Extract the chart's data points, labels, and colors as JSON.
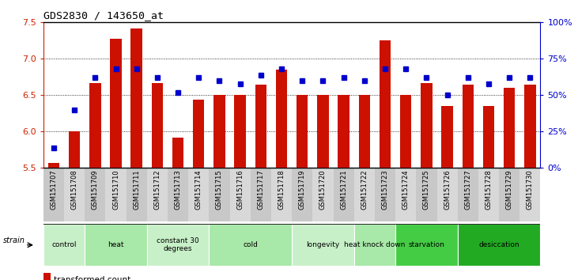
{
  "title": "GDS2830 / 143650_at",
  "samples": [
    "GSM151707",
    "GSM151708",
    "GSM151709",
    "GSM151710",
    "GSM151711",
    "GSM151712",
    "GSM151713",
    "GSM151714",
    "GSM151715",
    "GSM151716",
    "GSM151717",
    "GSM151718",
    "GSM151719",
    "GSM151720",
    "GSM151721",
    "GSM151722",
    "GSM151723",
    "GSM151724",
    "GSM151725",
    "GSM151726",
    "GSM151727",
    "GSM151728",
    "GSM151729",
    "GSM151730"
  ],
  "bar_values": [
    5.57,
    6.0,
    6.67,
    7.28,
    7.42,
    6.67,
    5.92,
    6.44,
    6.5,
    6.5,
    6.65,
    6.85,
    6.5,
    6.5,
    6.5,
    6.5,
    7.25,
    6.5,
    6.67,
    6.35,
    6.65,
    6.35,
    6.6,
    6.65
  ],
  "percentile_values": [
    14,
    40,
    62,
    68,
    68,
    62,
    52,
    62,
    60,
    58,
    64,
    68,
    60,
    60,
    62,
    60,
    68,
    68,
    62,
    50,
    62,
    58,
    62,
    62
  ],
  "groups": [
    {
      "label": "control",
      "start": 0,
      "end": 2,
      "color": "#c8f0c8"
    },
    {
      "label": "heat",
      "start": 2,
      "end": 5,
      "color": "#a8e8a8"
    },
    {
      "label": "constant 30\ndegrees",
      "start": 5,
      "end": 8,
      "color": "#c8f0c8"
    },
    {
      "label": "cold",
      "start": 8,
      "end": 12,
      "color": "#a8e8a8"
    },
    {
      "label": "longevity",
      "start": 12,
      "end": 15,
      "color": "#c8f0c8"
    },
    {
      "label": "heat knock down",
      "start": 15,
      "end": 17,
      "color": "#a8e8a8"
    },
    {
      "label": "starvation",
      "start": 17,
      "end": 20,
      "color": "#44cc44"
    },
    {
      "label": "desiccation",
      "start": 20,
      "end": 24,
      "color": "#22aa22"
    }
  ],
  "ylim_left": [
    5.5,
    7.5
  ],
  "ylim_right": [
    0,
    100
  ],
  "bar_color": "#cc1100",
  "percentile_color": "#0000cc",
  "background_color": "#ffffff",
  "grid_color": "#000000",
  "tick_color_left": "#cc2200",
  "tick_color_right": "#0000cc",
  "yticks_left": [
    5.5,
    6.0,
    6.5,
    7.0,
    7.5
  ],
  "yticks_right": [
    0,
    25,
    50,
    75,
    100
  ],
  "ytick_labels_right": [
    "0%",
    "25%",
    "50%",
    "75%",
    "100%"
  ]
}
